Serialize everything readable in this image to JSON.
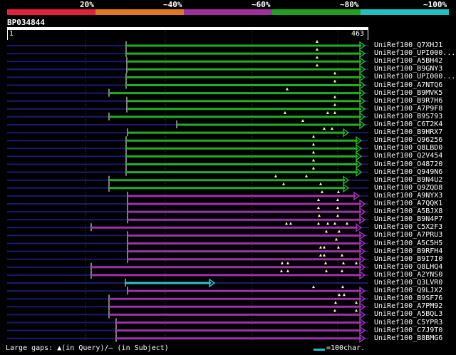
{
  "legend": {
    "segments": [
      {
        "color": "#e0203c",
        "label": "20%"
      },
      {
        "color": "#e07820",
        "label": "~40%"
      },
      {
        "color": "#a030a0",
        "label": "~60%"
      },
      {
        "color": "#20a020",
        "label": "~80%"
      },
      {
        "color": "#20c0c0",
        "label": "~100%"
      }
    ]
  },
  "query": {
    "name": "BP034844",
    "start": "1",
    "end": "463"
  },
  "colors": {
    "green": "#20b020",
    "purple": "#a030b0",
    "cyan": "#30c0d0",
    "query_line": "#1a1a70"
  },
  "hits": [
    {
      "name": "UniRef100_Q7XHJ1",
      "color": "green"
    },
    {
      "name": "UniRef100_UPI000...",
      "color": "green"
    },
    {
      "name": "UniRef100_A5BH42",
      "color": "green"
    },
    {
      "name": "UniRef100_B9GNY3",
      "color": "green"
    },
    {
      "name": "UniRef100_UPI000...",
      "color": "green"
    },
    {
      "name": "UniRef100_A7NTQ6",
      "color": "green"
    },
    {
      "name": "UniRef100_B9MVK5",
      "color": "green"
    },
    {
      "name": "UniRef100_B9R7H6",
      "color": "green"
    },
    {
      "name": "UniRef100_A7P9F8",
      "color": "green"
    },
    {
      "name": "UniRef100_B9S793",
      "color": "green"
    },
    {
      "name": "UniRef100_C6T2K4",
      "color": "green"
    },
    {
      "name": "UniRef100_B9HRX7",
      "color": "green"
    },
    {
      "name": "UniRef100_Q96256",
      "color": "green"
    },
    {
      "name": "UniRef100_Q8LBD0",
      "color": "green"
    },
    {
      "name": "UniRef100_Q2V454",
      "color": "green"
    },
    {
      "name": "UniRef100_O48720",
      "color": "green"
    },
    {
      "name": "UniRef100_Q949N6",
      "color": "green"
    },
    {
      "name": "UniRef100_B9N4U2",
      "color": "green"
    },
    {
      "name": "UniRef100_Q9ZQD8",
      "color": "green"
    },
    {
      "name": "UniRef100_A9NYX3",
      "color": "purple"
    },
    {
      "name": "UniRef100_A7QQK1",
      "color": "purple"
    },
    {
      "name": "UniRef100_A5BJX8",
      "color": "purple"
    },
    {
      "name": "UniRef100_B9N4P7",
      "color": "purple"
    },
    {
      "name": "UniRef100_C5X2F3",
      "color": "purple"
    },
    {
      "name": "UniRef100_A7PRU3",
      "color": "purple"
    },
    {
      "name": "UniRef100_A5C5H5",
      "color": "purple"
    },
    {
      "name": "UniRef100_B9RFH4",
      "color": "purple"
    },
    {
      "name": "UniRef100_B9I7I0",
      "color": "purple"
    },
    {
      "name": "UniRef100_Q8LHQ4",
      "color": "purple"
    },
    {
      "name": "UniRef100_A2YNS0",
      "color": "purple"
    },
    {
      "name": "UniRef100_Q3LVR0",
      "color": "cyan"
    },
    {
      "name": "UniRef100_Q9LJX2",
      "color": "purple"
    },
    {
      "name": "UniRef100_B9SF76",
      "color": "purple"
    },
    {
      "name": "UniRef100_A7PM92",
      "color": "purple"
    },
    {
      "name": "UniRef100_A5BQL3",
      "color": "purple"
    },
    {
      "name": "UniRef100_C5YPR3",
      "color": "purple"
    },
    {
      "name": "UniRef100_C7J9T0",
      "color": "purple"
    },
    {
      "name": "UniRef100_B8BMG6",
      "color": "purple"
    }
  ],
  "footer": {
    "left": "Large gaps: ▲(in Query)/— (in Subject)",
    "right": "=100char."
  }
}
